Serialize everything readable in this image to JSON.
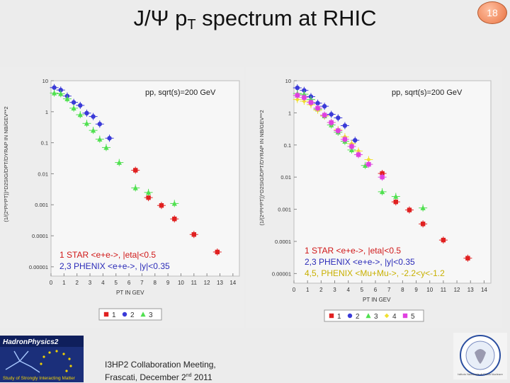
{
  "slide": {
    "title_main": "J/Ψ p",
    "title_sub": "T",
    "title_rest": " spectrum at RHIC",
    "page_number": "18",
    "footer_line1": "I3HP2 Collaboration Meeting,",
    "footer_line2a": "Frascati, December 2",
    "footer_line2_sup": "nd",
    "footer_line2b": " 2011",
    "logo_left_text": "HadronPhysics2",
    "logo_left_subtext": "Study of Strongly Interacting Matter",
    "seal_text": "Istituto Nazionale di Fisica Nucleare"
  },
  "colors": {
    "s1": "#e02020",
    "s2": "#3a3ad8",
    "s3": "#50e050",
    "s4": "#f0e030",
    "s5": "#e040e0"
  },
  "chart_data": [
    {
      "type": "scatter",
      "title": "pp, sqrt(s)=200 GeV",
      "xlabel": "PT  IN GEV",
      "ylabel": "(1/(2*PI*PT))*D2SIG/DPT/DYRAP IN NB/GEV**2",
      "xlim": [
        0,
        14.5
      ],
      "ylim_log10": [
        -5.3,
        1
      ],
      "yscale": "log",
      "xticks": [
        "0",
        "1",
        "2",
        "3",
        "4",
        "5",
        "6",
        "7",
        "8",
        "9",
        "10",
        "11",
        "12",
        "13",
        "14"
      ],
      "yticks": [
        "10",
        "1",
        "0.1",
        "0.01",
        "0.001",
        "0.0001",
        "0.00001"
      ],
      "legend_labels": [
        "1",
        "2",
        "3"
      ],
      "annotation_line1": "1 STAR <e+e->, |eta|<0.5",
      "annotation_line2": "2,3 PHENIX <e+e->, |y|<0.35",
      "series": [
        {
          "name": "1",
          "color": "s1",
          "marker": "square",
          "points": [
            [
              6.5,
              0.013
            ],
            [
              7.5,
              0.0017
            ],
            [
              8.5,
              0.00095
            ],
            [
              9.5,
              0.00035
            ],
            [
              11,
              0.00011
            ],
            [
              12.8,
              3e-05
            ]
          ]
        },
        {
          "name": "2",
          "color": "s2",
          "marker": "circle",
          "points": [
            [
              0.25,
              6
            ],
            [
              0.75,
              5
            ],
            [
              1.25,
              3.2
            ],
            [
              1.75,
              2
            ],
            [
              2.25,
              1.6
            ],
            [
              2.75,
              0.9
            ],
            [
              3.25,
              0.7
            ],
            [
              3.75,
              0.4
            ],
            [
              4.5,
              0.14
            ]
          ]
        },
        {
          "name": "3",
          "color": "s3",
          "marker": "triangle",
          "points": [
            [
              0.25,
              4
            ],
            [
              0.75,
              3.8
            ],
            [
              1.25,
              2.6
            ],
            [
              1.75,
              1.3
            ],
            [
              2.25,
              0.8
            ],
            [
              2.75,
              0.42
            ],
            [
              3.25,
              0.25
            ],
            [
              3.75,
              0.13
            ],
            [
              4.25,
              0.07
            ],
            [
              5.25,
              0.023
            ],
            [
              6.5,
              0.0035
            ],
            [
              7.5,
              0.0025
            ],
            [
              9.5,
              0.0011
            ]
          ]
        }
      ]
    },
    {
      "type": "scatter",
      "title": "pp, sqrt(s)=200 GeV",
      "xlabel": "PT  IN GEV",
      "ylabel": "(1/(2*PI*PT))*D2SIG/DPT/DYRAP IN NB/GEV**2",
      "xlim": [
        0,
        14.5
      ],
      "ylim_log10": [
        -5.3,
        1
      ],
      "yscale": "log",
      "xticks": [
        "0",
        "1",
        "2",
        "3",
        "4",
        "5",
        "6",
        "7",
        "8",
        "9",
        "10",
        "11",
        "12",
        "13",
        "14"
      ],
      "yticks": [
        "10",
        "1",
        "0.1",
        "0.01",
        "0.001",
        "0.0001",
        "0.00001"
      ],
      "legend_labels": [
        "1",
        "2",
        "3",
        "4",
        "5"
      ],
      "annotation_line1": "1 STAR <e+e->, |eta|<0.5",
      "annotation_line2": "2,3 PHENIX <e+e->, |y|<0.35",
      "annotation_line3": "4,5, PHENIX <Mu+Mu->, -2.2<y<-1.2",
      "series": [
        {
          "name": "1",
          "color": "s1",
          "marker": "square",
          "points": [
            [
              6.5,
              0.013
            ],
            [
              7.5,
              0.0017
            ],
            [
              8.5,
              0.00095
            ],
            [
              9.5,
              0.00035
            ],
            [
              11,
              0.00011
            ],
            [
              12.8,
              3e-05
            ]
          ]
        },
        {
          "name": "2",
          "color": "s2",
          "marker": "circle",
          "points": [
            [
              0.25,
              6
            ],
            [
              0.75,
              5
            ],
            [
              1.25,
              3.2
            ],
            [
              1.75,
              2
            ],
            [
              2.25,
              1.6
            ],
            [
              2.75,
              0.9
            ],
            [
              3.25,
              0.7
            ],
            [
              3.75,
              0.4
            ],
            [
              4.5,
              0.14
            ]
          ]
        },
        {
          "name": "3",
          "color": "s3",
          "marker": "triangle",
          "points": [
            [
              0.25,
              4
            ],
            [
              0.75,
              3.8
            ],
            [
              1.25,
              2.6
            ],
            [
              1.75,
              1.3
            ],
            [
              2.25,
              0.8
            ],
            [
              2.75,
              0.42
            ],
            [
              3.25,
              0.25
            ],
            [
              3.75,
              0.13
            ],
            [
              4.25,
              0.07
            ],
            [
              5.25,
              0.023
            ],
            [
              6.5,
              0.0035
            ],
            [
              7.5,
              0.0025
            ],
            [
              9.5,
              0.0011
            ]
          ]
        },
        {
          "name": "4",
          "color": "s4",
          "marker": "diamond",
          "points": [
            [
              0.25,
              2.6
            ],
            [
              0.75,
              2.3
            ],
            [
              1.25,
              1.8
            ],
            [
              1.75,
              1.2
            ],
            [
              2.25,
              0.8
            ],
            [
              2.75,
              0.5
            ],
            [
              3.25,
              0.3
            ],
            [
              3.75,
              0.18
            ],
            [
              4.25,
              0.11
            ],
            [
              4.75,
              0.065
            ],
            [
              5.5,
              0.035
            ]
          ]
        },
        {
          "name": "5",
          "color": "s5",
          "marker": "square",
          "points": [
            [
              0.25,
              3.5
            ],
            [
              0.75,
              3.0
            ],
            [
              1.25,
              2.1
            ],
            [
              1.75,
              1.4
            ],
            [
              2.25,
              0.85
            ],
            [
              2.75,
              0.5
            ],
            [
              3.25,
              0.28
            ],
            [
              3.75,
              0.15
            ],
            [
              4.25,
              0.09
            ],
            [
              4.75,
              0.05
            ],
            [
              5.5,
              0.025
            ],
            [
              6.5,
              0.01
            ]
          ]
        }
      ]
    }
  ]
}
